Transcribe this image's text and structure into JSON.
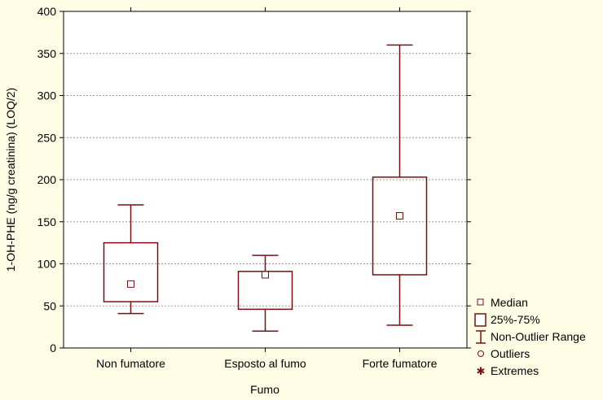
{
  "chart_data": {
    "type": "box",
    "xlabel": "Fumo",
    "ylabel": "1-OH-PHE (ng/g creatinina) (LOQ/2)",
    "ylim": [
      0,
      400
    ],
    "yticks": [
      0,
      50,
      100,
      150,
      200,
      250,
      300,
      350,
      400
    ],
    "grid": true,
    "legend_position": "right-bottom",
    "categories": [
      "Non fumatore",
      "Esposto al fumo",
      "Forte fumatore"
    ],
    "boxes": [
      {
        "category": "Non fumatore",
        "median": 76,
        "q1": 55,
        "q3": 125,
        "whisker_low": 41,
        "whisker_high": 170
      },
      {
        "category": "Esposto al fumo",
        "median": 87,
        "q1": 46,
        "q3": 91,
        "whisker_low": 20,
        "whisker_high": 110
      },
      {
        "category": "Forte fumatore",
        "median": 157,
        "q1": 87,
        "q3": 203,
        "whisker_low": 27,
        "whisker_high": 360
      }
    ],
    "legend": [
      {
        "symbol": "median-square",
        "label": "Median"
      },
      {
        "symbol": "box",
        "label": "25%-75%"
      },
      {
        "symbol": "whisker",
        "label": "Non-Outlier Range"
      },
      {
        "symbol": "circle",
        "label": "Outliers"
      },
      {
        "symbol": "star",
        "label": "Extremes"
      }
    ],
    "colors": {
      "box": "#7b0f0f",
      "background": "#fffde6",
      "plot_background": "#ffffff",
      "grid": "#999999"
    }
  }
}
